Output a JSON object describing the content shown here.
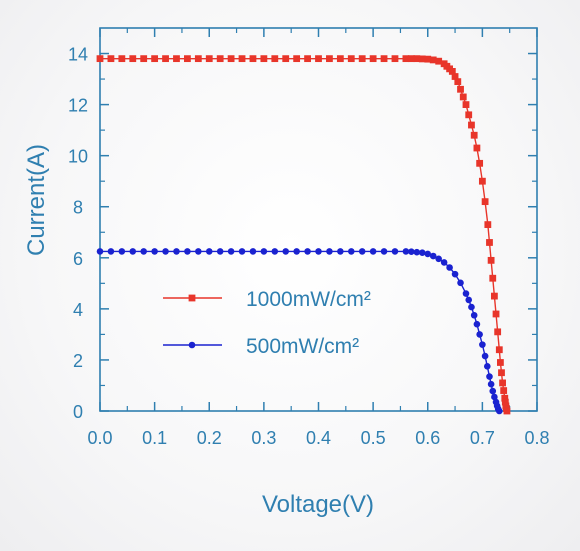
{
  "chart_data": {
    "type": "line",
    "xlabel": "Voltage(V)",
    "ylabel": "Current(A)",
    "xlim": [
      0,
      0.8
    ],
    "ylim": [
      0,
      15
    ],
    "x_ticks": [
      "0.0",
      "0.1",
      "0.2",
      "0.3",
      "0.4",
      "0.5",
      "0.6",
      "0.7",
      "0.8"
    ],
    "y_ticks": [
      "0",
      "2",
      "4",
      "6",
      "8",
      "10",
      "12",
      "14"
    ],
    "grid": false,
    "legend_position": "center-left",
    "colors": {
      "axis": "#2f7fb0",
      "series_1000": "#e8352a",
      "series_500": "#1a22d0"
    },
    "series": [
      {
        "name": "1000mW/cm²",
        "marker": "square",
        "color": "#e8352a",
        "x": [
          0.0,
          0.02,
          0.04,
          0.06,
          0.08,
          0.1,
          0.12,
          0.14,
          0.16,
          0.18,
          0.2,
          0.22,
          0.24,
          0.26,
          0.28,
          0.3,
          0.32,
          0.34,
          0.36,
          0.38,
          0.4,
          0.42,
          0.44,
          0.46,
          0.48,
          0.5,
          0.52,
          0.54,
          0.56,
          0.57,
          0.58,
          0.59,
          0.6,
          0.61,
          0.62,
          0.63,
          0.635,
          0.64,
          0.645,
          0.65,
          0.655,
          0.66,
          0.665,
          0.67,
          0.675,
          0.68,
          0.685,
          0.69,
          0.695,
          0.7,
          0.705,
          0.71,
          0.713,
          0.716,
          0.719,
          0.722,
          0.725,
          0.728,
          0.731,
          0.733,
          0.735,
          0.737,
          0.739,
          0.741,
          0.742,
          0.743,
          0.744,
          0.745
        ],
        "y": [
          13.8,
          13.8,
          13.8,
          13.8,
          13.8,
          13.8,
          13.8,
          13.8,
          13.8,
          13.8,
          13.8,
          13.8,
          13.8,
          13.8,
          13.8,
          13.8,
          13.8,
          13.8,
          13.8,
          13.8,
          13.8,
          13.8,
          13.8,
          13.8,
          13.8,
          13.8,
          13.8,
          13.8,
          13.8,
          13.8,
          13.8,
          13.79,
          13.78,
          13.75,
          13.7,
          13.6,
          13.5,
          13.4,
          13.3,
          13.1,
          12.9,
          12.6,
          12.3,
          12.0,
          11.6,
          11.2,
          10.8,
          10.3,
          9.7,
          9.0,
          8.2,
          7.3,
          6.6,
          5.9,
          5.2,
          4.5,
          3.8,
          3.1,
          2.4,
          1.9,
          1.5,
          1.1,
          0.8,
          0.5,
          0.35,
          0.2,
          0.1,
          0.0
        ]
      },
      {
        "name": "500mW/cm²",
        "marker": "circle",
        "color": "#1a22d0",
        "x": [
          0.0,
          0.02,
          0.04,
          0.06,
          0.08,
          0.1,
          0.12,
          0.14,
          0.16,
          0.18,
          0.2,
          0.22,
          0.24,
          0.26,
          0.28,
          0.3,
          0.32,
          0.34,
          0.36,
          0.38,
          0.4,
          0.42,
          0.44,
          0.46,
          0.48,
          0.5,
          0.52,
          0.54,
          0.56,
          0.57,
          0.58,
          0.59,
          0.6,
          0.61,
          0.62,
          0.63,
          0.64,
          0.65,
          0.66,
          0.67,
          0.675,
          0.68,
          0.685,
          0.69,
          0.695,
          0.7,
          0.705,
          0.709,
          0.713,
          0.716,
          0.719,
          0.722,
          0.725,
          0.727,
          0.729,
          0.731
        ],
        "y": [
          6.25,
          6.25,
          6.25,
          6.25,
          6.25,
          6.25,
          6.25,
          6.25,
          6.25,
          6.25,
          6.25,
          6.25,
          6.25,
          6.25,
          6.25,
          6.25,
          6.25,
          6.25,
          6.25,
          6.25,
          6.25,
          6.25,
          6.25,
          6.25,
          6.25,
          6.25,
          6.25,
          6.25,
          6.25,
          6.24,
          6.22,
          6.2,
          6.15,
          6.07,
          5.96,
          5.82,
          5.62,
          5.36,
          5.02,
          4.6,
          4.35,
          4.07,
          3.75,
          3.4,
          3.0,
          2.6,
          2.15,
          1.75,
          1.35,
          1.05,
          0.78,
          0.55,
          0.35,
          0.2,
          0.08,
          0.0
        ]
      }
    ]
  }
}
